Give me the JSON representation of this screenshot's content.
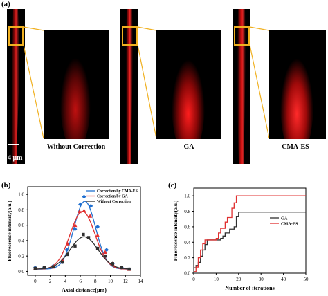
{
  "panel_a": {
    "label": "(a)",
    "scale_bar": "4 μm",
    "captions": [
      "Without Correction",
      "GA",
      "CMA-ES"
    ],
    "colors": {
      "highlight": "#f0b020",
      "signal": "#ff1a1a"
    }
  },
  "chart_data": [
    {
      "panel_label": "(b)",
      "type": "scatter",
      "xlabel": "Axial distance(μm)",
      "ylabel": "Fluorescence intensity(a.u.)",
      "xlim": [
        -1,
        14
      ],
      "ylim": [
        -0.05,
        1.1
      ],
      "xticks": [
        0,
        2,
        4,
        6,
        8,
        10,
        12,
        14
      ],
      "yticks": [
        0.0,
        0.2,
        0.4,
        0.6,
        0.8,
        1.0
      ],
      "legend_position": "top-right",
      "series": [
        {
          "name": "Correction by CMA-ES",
          "color": "#1f6fd0",
          "marker": "diamond",
          "points": [
            [
              0,
              0.05
            ],
            [
              1.2,
              0.05
            ],
            [
              2.4,
              0.07
            ],
            [
              3.6,
              0.12
            ],
            [
              4.2,
              0.28
            ],
            [
              5.3,
              0.55
            ],
            [
              6.0,
              0.87
            ],
            [
              6.5,
              0.97
            ],
            [
              7.4,
              0.85
            ],
            [
              8.3,
              0.58
            ],
            [
              9.5,
              0.28
            ],
            [
              10.3,
              0.1
            ],
            [
              11.5,
              0.05
            ],
            [
              12.5,
              0.03
            ]
          ],
          "fit": {
            "amplitude": 0.88,
            "center": 6.6,
            "sigma": 1.45,
            "offset": 0.03
          }
        },
        {
          "name": "Correction by GA",
          "color": "#e03030",
          "marker": "triangle",
          "points": [
            [
              0,
              0.04
            ],
            [
              1.2,
              0.05
            ],
            [
              2.4,
              0.06
            ],
            [
              3.6,
              0.15
            ],
            [
              4.3,
              0.36
            ],
            [
              5.3,
              0.6
            ],
            [
              5.9,
              0.78
            ],
            [
              6.5,
              0.79
            ],
            [
              7.3,
              0.72
            ],
            [
              8.3,
              0.47
            ],
            [
              9.3,
              0.25
            ],
            [
              10.3,
              0.1
            ],
            [
              11.5,
              0.05
            ],
            [
              12.5,
              0.03
            ]
          ],
          "fit": {
            "amplitude": 0.75,
            "center": 6.3,
            "sigma": 1.65,
            "offset": 0.03
          }
        },
        {
          "name": "Without Correction",
          "color": "#303030",
          "marker": "square",
          "points": [
            [
              0,
              0.04
            ],
            [
              1.2,
              0.05
            ],
            [
              2.4,
              0.06
            ],
            [
              3.6,
              0.12
            ],
            [
              4.3,
              0.22
            ],
            [
              5.3,
              0.33
            ],
            [
              6.4,
              0.48
            ],
            [
              7.1,
              0.44
            ],
            [
              8.3,
              0.3
            ],
            [
              9.3,
              0.2
            ],
            [
              10.3,
              0.1
            ],
            [
              11.5,
              0.05
            ],
            [
              12.5,
              0.03
            ]
          ],
          "fit": {
            "amplitude": 0.42,
            "center": 6.5,
            "sigma": 1.85,
            "offset": 0.03
          }
        }
      ]
    },
    {
      "panel_label": "(c)",
      "type": "line",
      "xlabel": "Number of iterations",
      "ylabel": "Fluorescence intensity(a.u.)",
      "xlim": [
        0,
        50
      ],
      "ylim": [
        0,
        1.1
      ],
      "xticks": [
        0,
        10,
        20,
        30,
        40,
        50
      ],
      "yticks": [
        0.0,
        0.2,
        0.4,
        0.6,
        0.8,
        1.0
      ],
      "legend_position": "right",
      "series": [
        {
          "name": "GA",
          "color": "#303030",
          "steps": [
            [
              0,
              0.07
            ],
            [
              1,
              0.1
            ],
            [
              2,
              0.14
            ],
            [
              3,
              0.22
            ],
            [
              4,
              0.3
            ],
            [
              5,
              0.37
            ],
            [
              6,
              0.43
            ],
            [
              12,
              0.45
            ],
            [
              13,
              0.48
            ],
            [
              14,
              0.52
            ],
            [
              16,
              0.57
            ],
            [
              18,
              0.6
            ],
            [
              19,
              0.73
            ],
            [
              20,
              0.79
            ],
            [
              50,
              0.79
            ]
          ]
        },
        {
          "name": "CMA-ES",
          "color": "#e03030",
          "steps": [
            [
              0,
              0.02
            ],
            [
              1,
              0.08
            ],
            [
              2,
              0.2
            ],
            [
              3,
              0.3
            ],
            [
              4,
              0.38
            ],
            [
              5,
              0.43
            ],
            [
              10,
              0.45
            ],
            [
              11,
              0.52
            ],
            [
              12,
              0.58
            ],
            [
              14,
              0.66
            ],
            [
              15,
              0.72
            ],
            [
              17,
              0.84
            ],
            [
              18,
              0.91
            ],
            [
              19,
              1.0
            ],
            [
              50,
              1.0
            ]
          ]
        }
      ]
    }
  ]
}
